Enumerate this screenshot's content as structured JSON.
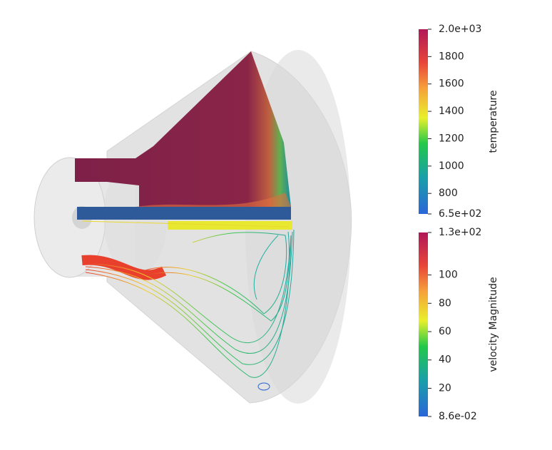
{
  "colorbars": [
    {
      "title": "temperature",
      "range": [
        650,
        2000
      ],
      "ticks": [
        {
          "value": 2000,
          "label": "2.0e+03"
        },
        1800,
        1600,
        1400,
        1200,
        1000,
        800,
        {
          "value": 650,
          "label": "6.5e+02"
        }
      ]
    },
    {
      "title": "velocity Magnitude",
      "range": [
        0.086,
        130
      ],
      "ticks": [
        {
          "value": 130,
          "label": "1.3e+02"
        },
        100,
        80,
        60,
        40,
        20,
        {
          "value": 0.086,
          "label": "8.6e-02"
        }
      ]
    }
  ]
}
